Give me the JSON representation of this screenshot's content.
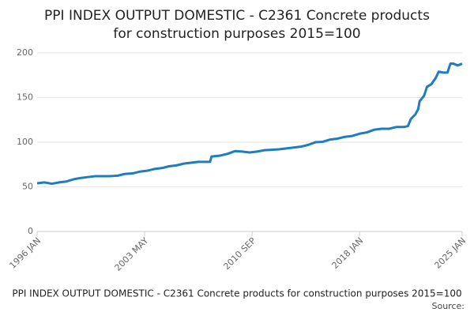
{
  "chart_data": {
    "type": "line",
    "title": "PPI INDEX OUTPUT DOMESTIC - C2361 Concrete products for construction purposes 2015=100",
    "title_lines": [
      "PPI INDEX OUTPUT DOMESTIC - C2361 Concrete products",
      "for construction purposes 2015=100"
    ],
    "footer": "PPI INDEX OUTPUT DOMESTIC - C2361 Concrete products for construction purposes 2015=100",
    "source": "Source:",
    "x": [
      1996.0,
      1996.5,
      1997.0,
      1997.5,
      1998.0,
      1998.5,
      1999.0,
      1999.5,
      2000.0,
      2000.5,
      2001.0,
      2001.5,
      2002.0,
      2002.5,
      2003.0,
      2003.5,
      2004.0,
      2004.5,
      2005.0,
      2005.5,
      2006.0,
      2006.5,
      2007.0,
      2007.8,
      2007.9,
      2008.5,
      2009.0,
      2009.5,
      2010.0,
      2010.5,
      2011.0,
      2011.5,
      2012.0,
      2012.5,
      2013.0,
      2013.5,
      2014.0,
      2014.5,
      2015.0,
      2015.5,
      2016.0,
      2016.5,
      2017.0,
      2017.5,
      2018.0,
      2018.5,
      2019.0,
      2019.5,
      2020.0,
      2020.5,
      2021.0,
      2021.3,
      2021.5,
      2021.8,
      2022.0,
      2022.1,
      2022.4,
      2022.6,
      2022.9,
      2023.2,
      2023.4,
      2023.7,
      2024.0,
      2024.2,
      2024.4,
      2024.7,
      2025.0
    ],
    "series": [
      {
        "color": "#1f7cbf",
        "values": [
          54,
          55,
          53.5,
          55,
          56,
          58.5,
          60,
          61,
          62,
          62,
          62,
          62.5,
          64.5,
          65,
          67,
          68,
          70,
          71,
          73,
          74,
          76,
          77,
          78,
          78,
          84,
          85,
          87,
          90,
          89.5,
          88.5,
          89.5,
          91,
          91.5,
          92,
          93,
          94,
          95,
          97,
          100,
          100.5,
          103,
          104,
          106,
          107,
          109.5,
          111,
          114,
          115,
          115,
          117,
          117,
          118,
          126,
          131,
          137,
          146,
          152,
          162,
          165,
          172,
          179,
          178,
          178,
          188,
          188,
          186,
          188
        ]
      }
    ],
    "xlim": [
      1996.0,
      2025.0
    ],
    "xticks": [
      {
        "value": 1996.0,
        "label": "1996 JAN"
      },
      {
        "value": 2003.33,
        "label": "2003 MAY"
      },
      {
        "value": 2010.67,
        "label": "2010 SEP"
      },
      {
        "value": 2018.0,
        "label": "2018 JAN"
      },
      {
        "value": 2025.0,
        "label": "2025 JAN"
      }
    ],
    "ylim": [
      0,
      200
    ],
    "yticks": [
      0,
      50,
      100,
      150,
      200
    ],
    "grid": true
  }
}
